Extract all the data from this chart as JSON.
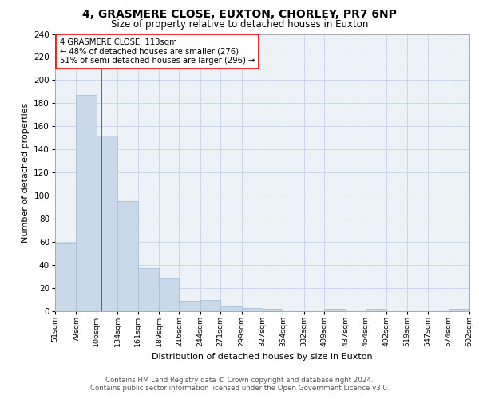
{
  "title1": "4, GRASMERE CLOSE, EUXTON, CHORLEY, PR7 6NP",
  "title2": "Size of property relative to detached houses in Euxton",
  "xlabel": "Distribution of detached houses by size in Euxton",
  "ylabel": "Number of detached properties",
  "bar_edges": [
    51,
    79,
    106,
    134,
    161,
    189,
    216,
    244,
    271,
    299,
    327,
    354,
    382,
    409,
    437,
    464,
    492,
    519,
    547,
    574,
    602
  ],
  "bar_heights": [
    59,
    187,
    152,
    95,
    37,
    29,
    9,
    10,
    4,
    3,
    2,
    0,
    0,
    2,
    0,
    2,
    0,
    0,
    0,
    2
  ],
  "bar_color": "#c9d9ea",
  "bar_edgecolor": "#a8c0d6",
  "red_line_x": 113,
  "annotation_text": "4 GRASMERE CLOSE: 113sqm\n← 48% of detached houses are smaller (276)\n51% of semi-detached houses are larger (296) →",
  "annotation_box_edgecolor": "red",
  "grid_color": "#c8d8ea",
  "bg_color": "#edf2f8",
  "footnote1": "Contains HM Land Registry data © Crown copyright and database right 2024.",
  "footnote2": "Contains public sector information licensed under the Open Government Licence v3.0.",
  "ylim": [
    0,
    240
  ],
  "yticks": [
    0,
    20,
    40,
    60,
    80,
    100,
    120,
    140,
    160,
    180,
    200,
    220,
    240
  ],
  "tick_labels": [
    "51sqm",
    "79sqm",
    "106sqm",
    "134sqm",
    "161sqm",
    "189sqm",
    "216sqm",
    "244sqm",
    "271sqm",
    "299sqm",
    "327sqm",
    "354sqm",
    "382sqm",
    "409sqm",
    "437sqm",
    "464sqm",
    "492sqm",
    "519sqm",
    "547sqm",
    "574sqm",
    "602sqm"
  ]
}
